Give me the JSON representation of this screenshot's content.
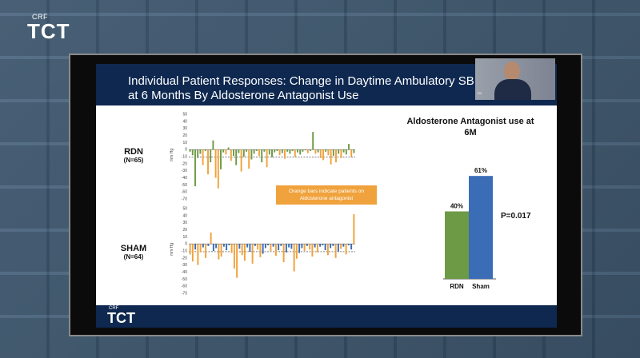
{
  "background": {
    "color": "#3f5a73"
  },
  "brand": {
    "crf": "CRF",
    "tct": "TCT"
  },
  "slide": {
    "title_line1": "Individual Patient Responses: Change in Daytime Ambulatory SBP",
    "title_line2": "at 6 Months By Aldosterone Antagonist Use",
    "header_color": "#0e2850",
    "webcam_caption": "R1"
  },
  "left_panel": {
    "rdn": {
      "label": "RDN",
      "n": "(N=65)"
    },
    "sham": {
      "label": "SHAM",
      "n": "(N=64)"
    },
    "unit": "mm Hg",
    "note": [
      "Orange bars indicate patients on",
      "Aldosterone antagonist"
    ]
  },
  "chart_data": [
    {
      "type": "bar",
      "title": "RDN",
      "ylabel": "mm Hg",
      "ylim": [
        -70,
        50
      ],
      "yticks": [
        50,
        40,
        30,
        20,
        10,
        0,
        -10,
        -20,
        -30,
        -40,
        -50,
        -60,
        -70
      ],
      "colors": {
        "default": "#6d9a45",
        "aldosterone": "#f0a23c"
      },
      "values": [
        -3,
        -8,
        -52,
        -12,
        -6,
        -22,
        -2,
        -35,
        -18,
        13,
        -40,
        -55,
        -28,
        -4,
        -7,
        3,
        -16,
        -9,
        -22,
        -5,
        -31,
        -10,
        -3,
        -27,
        -14,
        -6,
        -2,
        -9,
        -18,
        -3,
        -25,
        -7,
        -11,
        -4,
        -2,
        -8,
        -5,
        -13,
        -3,
        -6,
        -2,
        -10,
        -4,
        -7,
        -3,
        -1,
        -5,
        -2,
        25,
        -6,
        -4,
        -12,
        -15,
        -3,
        -8,
        -21,
        -9,
        -18,
        -6,
        -12,
        -4,
        -7,
        8,
        -10,
        -5
      ],
      "aldosterone": [
        0,
        0,
        0,
        0,
        0,
        1,
        0,
        1,
        0,
        0,
        1,
        1,
        0,
        0,
        1,
        0,
        1,
        0,
        0,
        0,
        1,
        0,
        0,
        1,
        0,
        0,
        0,
        1,
        0,
        0,
        1,
        0,
        0,
        0,
        0,
        1,
        0,
        1,
        0,
        0,
        0,
        1,
        0,
        0,
        0,
        0,
        1,
        0,
        0,
        1,
        0,
        1,
        1,
        0,
        1,
        1,
        0,
        1,
        0,
        1,
        0,
        0,
        0,
        1,
        0
      ]
    },
    {
      "type": "bar",
      "title": "SHAM",
      "ylabel": "mm Hg",
      "ylim": [
        -70,
        50
      ],
      "yticks": [
        50,
        40,
        30,
        20,
        10,
        0,
        -10,
        -20,
        -30,
        -40,
        -50,
        -60,
        -70
      ],
      "colors": {
        "default": "#3b6db7",
        "aldosterone": "#f0a23c"
      },
      "values": [
        -15,
        -25,
        -8,
        -30,
        -12,
        -5,
        -20,
        -3,
        16,
        -10,
        -6,
        -22,
        -18,
        -4,
        -9,
        -2,
        -13,
        -35,
        -48,
        -7,
        -16,
        -24,
        -5,
        -11,
        -28,
        -3,
        -8,
        -19,
        -14,
        -6,
        -2,
        -10,
        -4,
        -17,
        -9,
        -3,
        -26,
        -12,
        -5,
        -7,
        -39,
        -21,
        -13,
        -6,
        -10,
        -3,
        -8,
        -18,
        -5,
        -12,
        -4,
        -2,
        -9,
        -16,
        -6,
        -3,
        -20,
        -11,
        -7,
        -4,
        -15,
        -2,
        -8,
        42
      ],
      "aldosterone": [
        1,
        1,
        0,
        1,
        1,
        0,
        1,
        0,
        1,
        0,
        0,
        1,
        1,
        0,
        0,
        0,
        1,
        1,
        1,
        0,
        1,
        1,
        0,
        0,
        1,
        0,
        1,
        1,
        0,
        0,
        0,
        1,
        0,
        1,
        0,
        0,
        1,
        0,
        0,
        0,
        1,
        1,
        0,
        0,
        1,
        0,
        1,
        1,
        0,
        1,
        0,
        0,
        0,
        1,
        0,
        0,
        1,
        0,
        1,
        0,
        1,
        0,
        0,
        1
      ]
    },
    {
      "type": "bar",
      "title": "Aldosterone Antagonist use at 6M",
      "categories": [
        "RDN",
        "Sham"
      ],
      "values": [
        40,
        61
      ],
      "value_labels": [
        "40%",
        "61%"
      ],
      "colors": [
        "#6d9a45",
        "#3b6db7"
      ],
      "ylim": [
        0,
        100
      ],
      "annotation": "P=0.017"
    }
  ]
}
